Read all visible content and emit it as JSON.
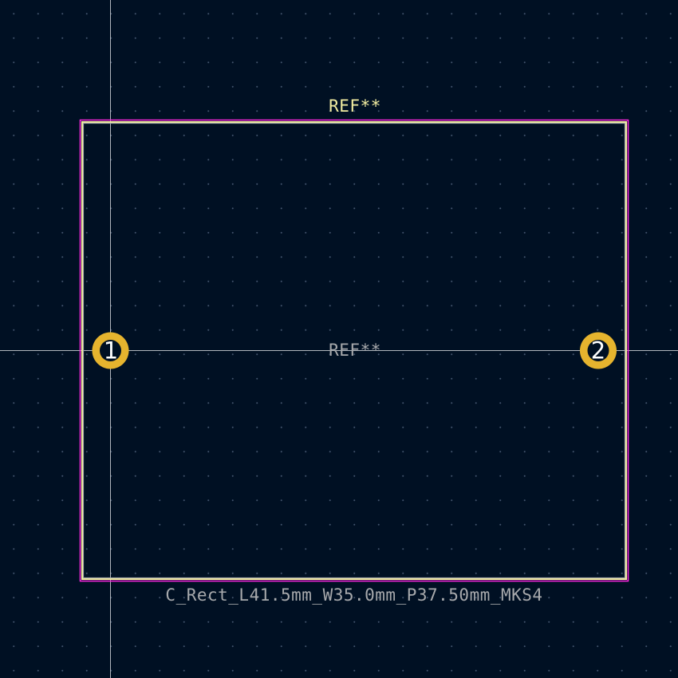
{
  "footprint": {
    "reference_silk": "REF**",
    "reference_fab": "REF**",
    "value": "C_Rect_L41.5mm_W35.0mm_P37.50mm_MKS4"
  },
  "pads": [
    {
      "number": "1"
    },
    {
      "number": "2"
    }
  ],
  "colors": {
    "background": "#001023",
    "grid_dot": "#788caa",
    "crosshair": "#d0d4d8",
    "courtyard": "#ff26e2",
    "silkscreen": "#f2eda1",
    "fab_outline": "#a7a9ac",
    "pad": "#e6b42e",
    "drill_hole": "#001023"
  }
}
